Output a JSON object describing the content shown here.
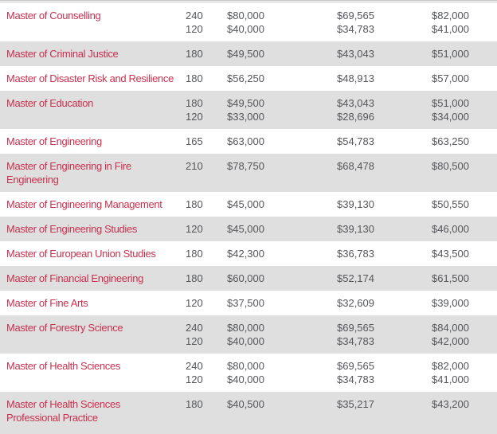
{
  "theme": {
    "link_red": "#c8314f",
    "value_gray": "#55565a",
    "stripe_gray": "#dfdfdf",
    "top_border": "#c9c9c9"
  },
  "table": {
    "rows": [
      {
        "program": "Master of Counselling",
        "entries": [
          {
            "points": "240",
            "amount1": "$80,000",
            "amount2": "$69,565",
            "amount3": "$82,000"
          },
          {
            "points": "120",
            "amount1": "$40,000",
            "amount2": "$34,783",
            "amount3": "$41,000"
          }
        ]
      },
      {
        "program": "Master of Criminal Justice",
        "entries": [
          {
            "points": "180",
            "amount1": "$49,500",
            "amount2": "$43,043",
            "amount3": "$51,000"
          }
        ]
      },
      {
        "program": "Master of Disaster Risk and Resilience",
        "entries": [
          {
            "points": "180",
            "amount1": "$56,250",
            "amount2": "$48,913",
            "amount3": "$57,000"
          }
        ]
      },
      {
        "program": "Master of Education",
        "entries": [
          {
            "points": "180",
            "amount1": "$49,500",
            "amount2": "$43,043",
            "amount3": "$51,000"
          },
          {
            "points": "120",
            "amount1": "$33,000",
            "amount2": "$28,696",
            "amount3": "$34,000"
          }
        ]
      },
      {
        "program": "Master of Engineering",
        "entries": [
          {
            "points": "165",
            "amount1": "$63,000",
            "amount2": "$54,783",
            "amount3": "$63,250"
          }
        ]
      },
      {
        "program": "Master of Engineering in Fire\nEngineering",
        "entries": [
          {
            "points": "210",
            "amount1": "$78,750",
            "amount2": "$68,478",
            "amount3": "$80,500"
          }
        ]
      },
      {
        "program": "Master of Engineering Management",
        "entries": [
          {
            "points": "180",
            "amount1": "$45,000",
            "amount2": "$39,130",
            "amount3": "$50,550"
          }
        ]
      },
      {
        "program": "Master of Engineering Studies",
        "entries": [
          {
            "points": "120",
            "amount1": "$45,000",
            "amount2": "$39,130",
            "amount3": "$46,000"
          }
        ]
      },
      {
        "program": "Master of European Union Studies",
        "entries": [
          {
            "points": "180",
            "amount1": "$42,300",
            "amount2": "$36,783",
            "amount3": "$43,500"
          }
        ]
      },
      {
        "program": "Master of Financial Engineering",
        "entries": [
          {
            "points": "180",
            "amount1": "$60,000",
            "amount2": "$52,174",
            "amount3": "$61,500"
          }
        ]
      },
      {
        "program": "Master of Fine Arts",
        "entries": [
          {
            "points": "120",
            "amount1": "$37,500",
            "amount2": "$32,609",
            "amount3": "$39,000"
          }
        ]
      },
      {
        "program": "Master of Forestry Science",
        "entries": [
          {
            "points": "240",
            "amount1": "$80,000",
            "amount2": "$69,565",
            "amount3": "$84,000"
          },
          {
            "points": "120",
            "amount1": "$40,000",
            "amount2": "$34,783",
            "amount3": "$42,000"
          }
        ]
      },
      {
        "program": "Master of Health Sciences",
        "entries": [
          {
            "points": "240",
            "amount1": "$80,000",
            "amount2": "$69,565",
            "amount3": "$82,000"
          },
          {
            "points": "120",
            "amount1": "$40,000",
            "amount2": "$34,783",
            "amount3": "$41,000"
          }
        ]
      },
      {
        "program": "Master of Health Sciences\nProfessional Practice",
        "entries": [
          {
            "points": "180",
            "amount1": "$40,500",
            "amount2": "$35,217",
            "amount3": "$43,200"
          }
        ]
      }
    ]
  }
}
